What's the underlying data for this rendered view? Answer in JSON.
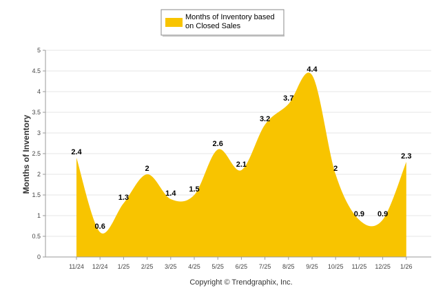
{
  "chart_data": {
    "type": "area",
    "title": "",
    "legend": {
      "label_line1": "Months of Inventory based",
      "label_line2": "on Closed Sales",
      "position": "top-center"
    },
    "xlabel": "",
    "ylabel": "Months of Inventory",
    "ylim": [
      0,
      5
    ],
    "yticks": [
      "0",
      "0.5",
      "1",
      "1.5",
      "2",
      "2.5",
      "3",
      "3.5",
      "4",
      "4.5",
      "5"
    ],
    "categories": [
      "11/24",
      "12/24",
      "1/25",
      "2/25",
      "3/25",
      "4/25",
      "5/25",
      "6/25",
      "7/25",
      "8/25",
      "9/25",
      "10/25",
      "11/25",
      "12/25",
      "1/26"
    ],
    "values": [
      2.4,
      0.6,
      1.3,
      2,
      1.4,
      1.5,
      2.6,
      2.1,
      3.2,
      3.7,
      4.4,
      2,
      0.9,
      0.9,
      2.3
    ],
    "value_labels": [
      "2.4",
      "0.6",
      "1.3",
      "2",
      "1.4",
      "1.5",
      "2.6",
      "2.1",
      "3.2",
      "3.7",
      "4.4",
      "2",
      "0.9",
      "0.9",
      "2.3"
    ],
    "grid": true,
    "series_color": "#F8C400",
    "footer": "Copyright © Trendgraphix, Inc."
  }
}
